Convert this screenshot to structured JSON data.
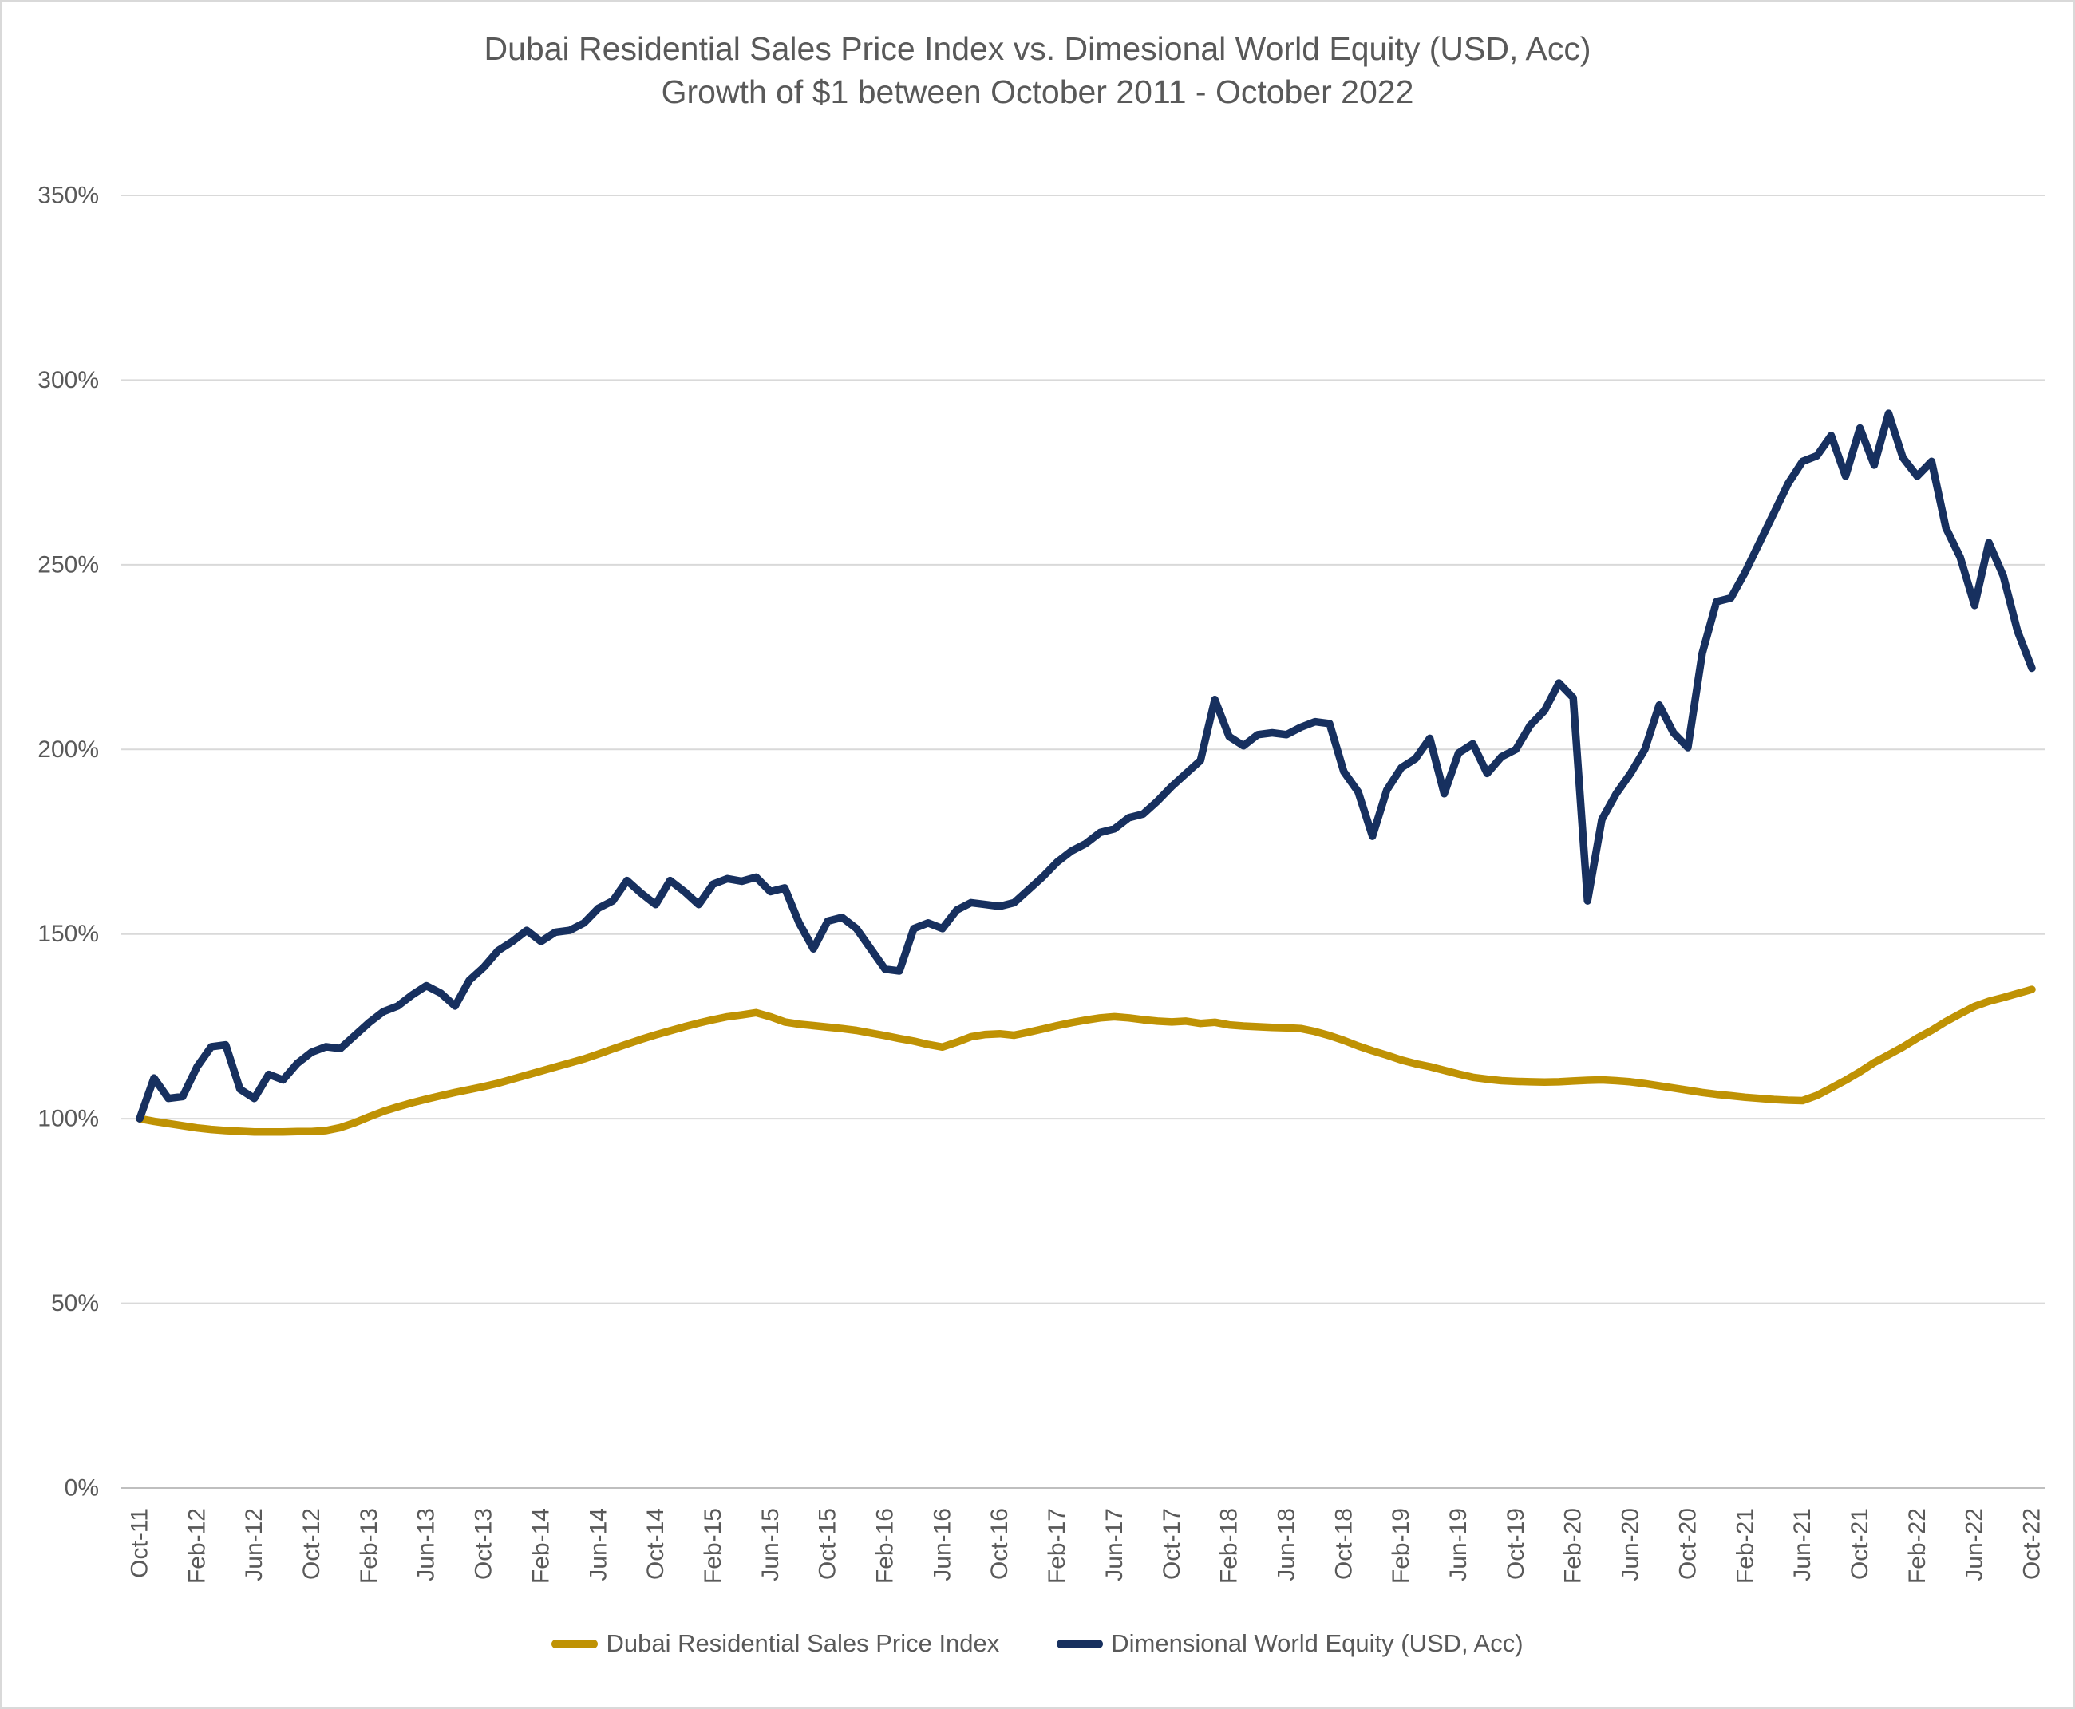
{
  "title": {
    "line1": "Dubai Residential Sales Price Index vs. Dimesional World Equity (USD, Acc)",
    "line2": "Growth of $1 between October 2011 - October 2022"
  },
  "legend": {
    "items": [
      {
        "label": "Dubai Residential Sales Price Index"
      },
      {
        "label": "Dimensional World Equity (USD, Acc)"
      }
    ]
  },
  "chart_data": {
    "type": "line",
    "title": "Dubai Residential Sales Price Index vs. Dimesional World Equity (USD, Acc)",
    "subtitle": "Growth of $1 between October 2011 - October 2022",
    "x_interval": "monthly",
    "x_start_month": "Oct-2011",
    "x_end_month": "Oct-2022",
    "x_tick_every": 4,
    "x_tick_labels": [
      "Oct-11",
      "Feb-12",
      "Jun-12",
      "Oct-12",
      "Feb-13",
      "Jun-13",
      "Oct-13",
      "Feb-14",
      "Jun-14",
      "Oct-14",
      "Feb-15",
      "Jun-15",
      "Oct-15",
      "Feb-16",
      "Jun-16",
      "Oct-16",
      "Feb-17",
      "Jun-17",
      "Oct-17",
      "Feb-18",
      "Jun-18",
      "Oct-18",
      "Feb-19",
      "Jun-19",
      "Oct-19",
      "Feb-20",
      "Jun-20",
      "Oct-20",
      "Feb-21",
      "Jun-21",
      "Oct-21",
      "Feb-22",
      "Jun-22",
      "Oct-22"
    ],
    "ylim": [
      0,
      350
    ],
    "y_tick_step": 50,
    "y_tick_labels": [
      "0%",
      "50%",
      "100%",
      "150%",
      "200%",
      "250%",
      "300%",
      "350%"
    ],
    "y_unit": "percent",
    "grid": true,
    "legend_position": "bottom",
    "colors": {
      "grid": "#d9d9d9",
      "axis": "#bfbfbf",
      "text": "#595959",
      "background": "#ffffff"
    },
    "series": [
      {
        "name": "Dubai Residential Sales Price Index",
        "color": "#BF9204",
        "values": [
          100,
          99.3,
          98.7,
          98.1,
          97.5,
          97.1,
          96.8,
          96.6,
          96.4,
          96.4,
          96.4,
          96.5,
          96.5,
          96.8,
          97.6,
          98.9,
          100.5,
          102,
          103.2,
          104.3,
          105.3,
          106.2,
          107.1,
          107.9,
          108.7,
          109.6,
          110.7,
          111.8,
          112.9,
          114,
          115.1,
          116.2,
          117.5,
          118.9,
          120.2,
          121.5,
          122.7,
          123.8,
          124.9,
          125.9,
          126.8,
          127.6,
          128.1,
          128.7,
          127.6,
          126.2,
          125.6,
          125.2,
          124.8,
          124.4,
          123.9,
          123.2,
          122.5,
          121.7,
          121,
          120.1,
          119.4,
          120.7,
          122.2,
          122.8,
          123,
          122.6,
          123.4,
          124.3,
          125.2,
          126,
          126.7,
          127.3,
          127.6,
          127.3,
          126.8,
          126.4,
          126.2,
          126.4,
          125.8,
          126.1,
          125.4,
          125.1,
          124.9,
          124.7,
          124.6,
          124.4,
          123.6,
          122.5,
          121.2,
          119.7,
          118.4,
          117.2,
          115.9,
          114.9,
          114.1,
          113.1,
          112.1,
          111.2,
          110.7,
          110.3,
          110.1,
          110,
          109.9,
          110,
          110.2,
          110.4,
          110.5,
          110.3,
          110,
          109.5,
          108.9,
          108.3,
          107.7,
          107.1,
          106.6,
          106.2,
          105.8,
          105.5,
          105.2,
          105,
          104.9,
          106.3,
          108.3,
          110.4,
          112.7,
          115.2,
          117.3,
          119.4,
          121.8,
          123.9,
          126.3,
          128.4,
          130.4,
          131.8,
          132.8,
          133.9,
          135
        ]
      },
      {
        "name": "Dimensional World Equity (USD, Acc)",
        "color": "#17305F",
        "values": [
          100,
          111,
          105.5,
          106,
          114,
          119.5,
          120,
          108,
          105.5,
          112,
          110.5,
          115,
          118,
          119.5,
          119,
          122.5,
          126,
          129,
          130.5,
          133.5,
          136,
          134,
          130.5,
          137.5,
          141,
          145.5,
          148,
          151,
          148,
          150.5,
          151,
          153,
          157,
          159,
          164.5,
          161,
          158,
          164.5,
          161.5,
          158,
          163.5,
          165,
          164.3,
          165.4,
          161.5,
          162.5,
          153,
          146,
          153.5,
          154.5,
          151.5,
          146,
          140.5,
          140,
          151.5,
          153,
          151.5,
          156.5,
          158.5,
          158,
          157.5,
          158.5,
          162,
          165.5,
          169.5,
          172.5,
          174.5,
          177.5,
          178.5,
          181.5,
          182.5,
          186,
          190,
          193.5,
          197,
          213.5,
          203.5,
          201,
          204,
          204.5,
          204,
          206,
          207.5,
          207,
          194,
          188.5,
          176.5,
          189,
          195,
          197.5,
          203,
          188,
          199,
          201.5,
          193.5,
          198,
          200,
          206.5,
          210.5,
          218,
          214,
          159,
          181,
          188,
          193.5,
          200,
          212,
          204.5,
          200.5,
          226,
          240,
          241,
          248,
          256,
          264,
          272,
          278,
          279.5,
          285,
          274,
          287,
          277,
          291,
          279,
          274,
          278,
          260,
          252,
          239,
          256,
          247,
          232,
          222
        ]
      }
    ]
  }
}
